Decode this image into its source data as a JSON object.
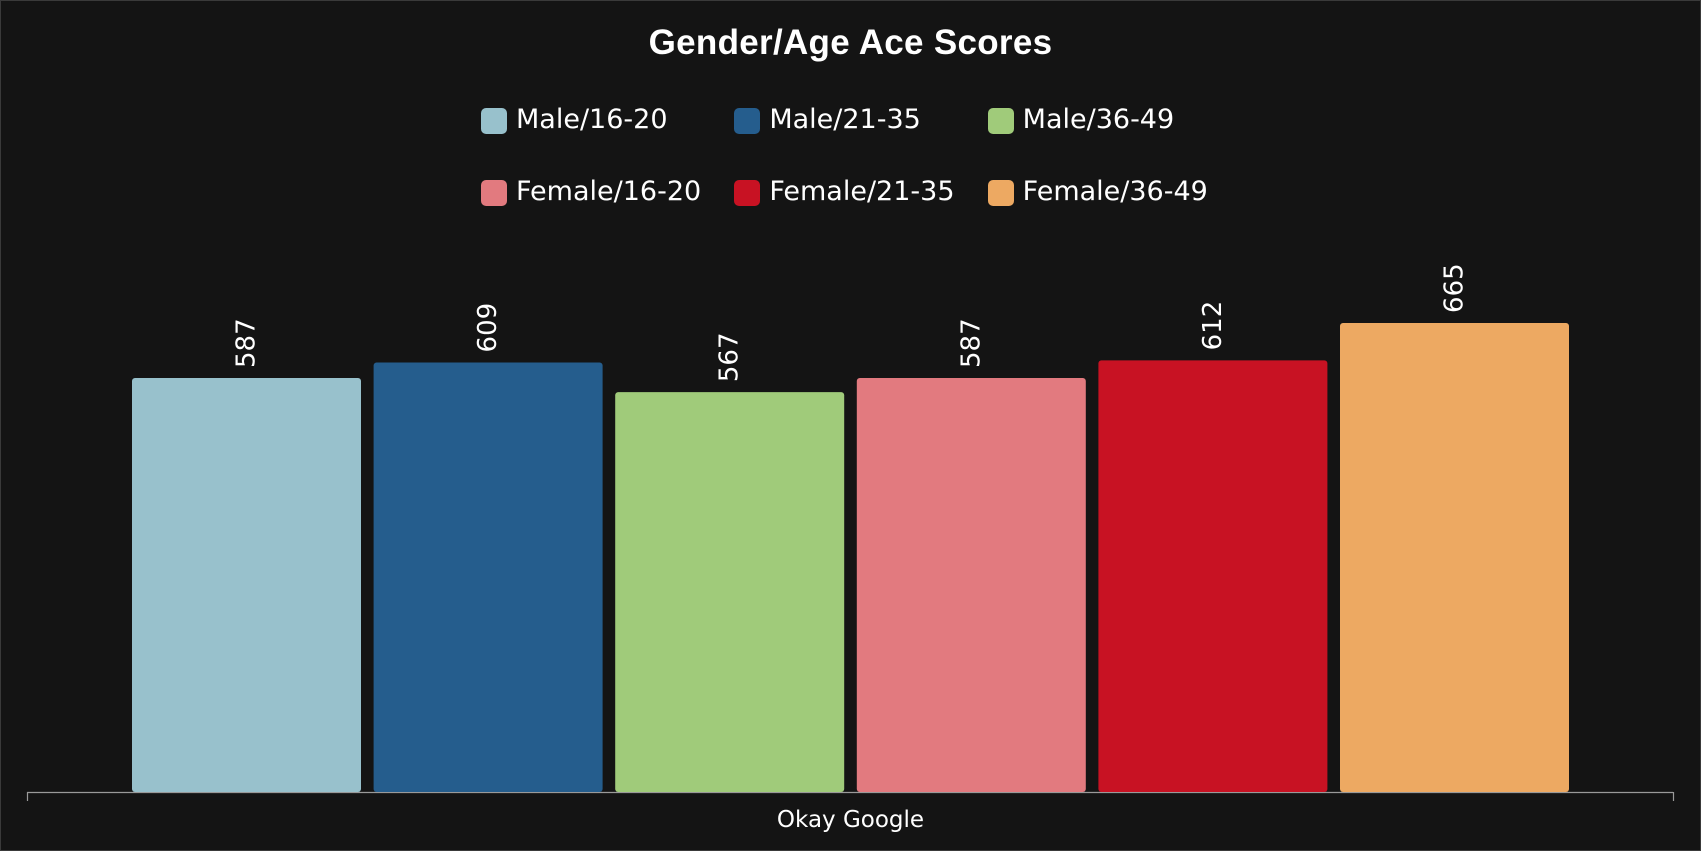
{
  "chart_data": {
    "type": "bar",
    "title": "Gender/Age Ace Scores",
    "categories": [
      "Okay Google"
    ],
    "series": [
      {
        "name": "Male/16-20",
        "values": [
          587
        ],
        "color": "#98c1cc"
      },
      {
        "name": "Male/21-35",
        "values": [
          609
        ],
        "color": "#255d8d"
      },
      {
        "name": "Male/36-49",
        "values": [
          567
        ],
        "color": "#a0cb7a"
      },
      {
        "name": "Female/16-20",
        "values": [
          587
        ],
        "color": "#e27a7f"
      },
      {
        "name": "Female/21-35",
        "values": [
          612
        ],
        "color": "#c81223"
      },
      {
        "name": "Female/36-49",
        "values": [
          665
        ],
        "color": "#eda962"
      }
    ],
    "xlabel": "",
    "ylabel": "",
    "ylim": [
      0,
      800
    ],
    "grid": false,
    "legend_position": "top",
    "data_labels": [
      "587",
      "609",
      "567",
      "587",
      "612",
      "665"
    ]
  },
  "colors": {
    "background": "#141414",
    "text": "#ffffff",
    "axis": "#9a9a9a"
  }
}
